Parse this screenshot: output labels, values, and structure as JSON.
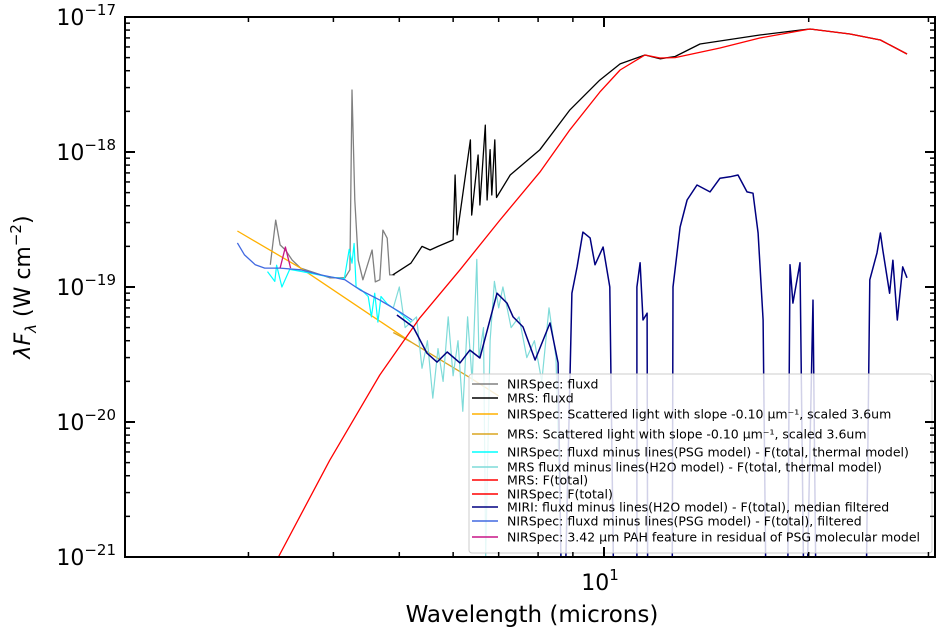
{
  "chart_data": {
    "type": "line",
    "title": "",
    "xlabel": "Wavelength (microns)",
    "ylabel": {
      "main": "λF",
      "sub": "λ",
      "unit": " (W cm",
      "exp": "−2",
      "close": ")"
    },
    "xscale": "log",
    "yscale": "log",
    "xlim": [
      1.97,
      30.7
    ],
    "ylim": [
      1e-21,
      1e-17
    ],
    "grid": false,
    "legend_placement": "lower-right",
    "x_ticks": [
      {
        "value": 10,
        "base": "10",
        "exp": "1"
      }
    ],
    "y_ticks": [
      {
        "value": 1e-17,
        "base": "10",
        "exp": "−17"
      },
      {
        "value": 1e-18,
        "base": "10",
        "exp": "−18"
      },
      {
        "value": 1e-19,
        "base": "10",
        "exp": "−19"
      },
      {
        "value": 1e-20,
        "base": "10",
        "exp": "−20"
      },
      {
        "value": 1e-21,
        "base": "10",
        "exp": "−21"
      }
    ],
    "series": [
      {
        "name": "NIRSpec: fluxd",
        "color": "#808080",
        "points": [
          [
            3.23,
            1.46e-19
          ],
          [
            3.29,
            3.13e-19
          ],
          [
            3.34,
            2.05e-19
          ],
          [
            3.4,
            1.88e-19
          ],
          [
            3.48,
            1.58e-19
          ],
          [
            3.58,
            1.38e-19
          ],
          [
            3.95,
            1.17e-19
          ],
          [
            4.16,
            1.17e-19
          ],
          [
            4.23,
            1.34e-19
          ],
          [
            4.26,
            2.88e-18
          ],
          [
            4.3,
            4.41e-19
          ],
          [
            4.35,
            1.58e-19
          ],
          [
            4.42,
            1.13e-19
          ],
          [
            4.56,
            1.88e-19
          ],
          [
            4.61,
            1.09e-19
          ],
          [
            4.68,
            1.13e-19
          ],
          [
            4.73,
            2.64e-19
          ],
          [
            4.8,
            2.3e-19
          ],
          [
            4.84,
            1.23e-19
          ],
          [
            4.93,
            1.23e-19
          ]
        ]
      },
      {
        "name": "MRS: fluxd",
        "color": "#000000",
        "points": [
          [
            4.89,
            1.23e-19
          ],
          [
            5.2,
            1.5e-19
          ],
          [
            5.4,
            2e-19
          ],
          [
            5.55,
            1.88e-19
          ],
          [
            5.7,
            2e-19
          ],
          [
            6.0,
            2.23e-19
          ],
          [
            6.04,
            6.76e-19
          ],
          [
            6.08,
            2.43e-19
          ],
          [
            6.36,
            1.23e-18
          ],
          [
            6.39,
            3.41e-19
          ],
          [
            6.53,
            9.5e-19
          ],
          [
            6.57,
            4.05e-19
          ],
          [
            6.69,
            1.58e-18
          ],
          [
            6.73,
            4.41e-19
          ],
          [
            6.8,
            1.04e-18
          ],
          [
            6.84,
            4.8e-19
          ],
          [
            6.91,
            1.23e-18
          ],
          [
            6.95,
            4.6e-19
          ],
          [
            7.28,
            6.76e-19
          ],
          [
            8.05,
            1.04e-18
          ],
          [
            8.91,
            2.05e-18
          ],
          [
            9.86,
            3.41e-18
          ],
          [
            10.56,
            4.49e-18
          ],
          [
            11.49,
            5.23e-18
          ],
          [
            12.09,
            4.9e-18
          ],
          [
            12.72,
            5.1e-18
          ],
          [
            13.84,
            6.31e-18
          ],
          [
            16.95,
            7.36e-18
          ],
          [
            19.4,
            8e-18
          ],
          [
            20.09,
            8.15e-18
          ],
          [
            23.0,
            7.48e-18
          ],
          [
            25.5,
            6.75e-18
          ],
          [
            27.9,
            5.32e-18
          ]
        ]
      },
      {
        "name": "NIRSpec: Scattered light with slope -0.10 μm⁻¹, scaled 3.6um",
        "color": "#ffb000",
        "points": [
          [
            2.89,
            2.6e-19
          ],
          [
            3.58,
            1.38e-19
          ],
          [
            4.58,
            6e-20
          ],
          [
            5.2,
            3.92e-20
          ]
        ]
      },
      {
        "name": "MRS: Scattered light with slope -0.10 μm⁻¹, scaled 3.6um",
        "color": "#daa520",
        "points": [
          [
            4.9,
            4.6e-20
          ],
          [
            5.2,
            3.92e-20
          ],
          [
            6.36,
            2.12e-20
          ],
          [
            7.0,
            1.56e-20
          ]
        ]
      },
      {
        "name": "NIRSpec: fluxd minus lines(PSG model) - F(total, thermal model)",
        "color": "#00ffff",
        "points": [
          [
            3.2,
            1.3e-19
          ],
          [
            3.28,
            1.1e-19
          ],
          [
            3.3,
            1.45e-19
          ],
          [
            3.36,
            1e-19
          ],
          [
            3.45,
            1.35e-19
          ],
          [
            3.6,
            1.3e-19
          ],
          [
            3.9,
            1.2e-19
          ],
          [
            4.15,
            1.15e-19
          ],
          [
            4.22,
            1.9e-19
          ],
          [
            4.26,
            1.5e-19
          ],
          [
            4.29,
            2.1e-19
          ],
          [
            4.32,
            1e-19
          ],
          [
            4.4,
            9.5e-20
          ],
          [
            4.5,
            8.5e-20
          ],
          [
            4.55,
            6e-20
          ],
          [
            4.6,
            9e-20
          ],
          [
            4.65,
            5.5e-20
          ],
          [
            4.7,
            8.5e-20
          ],
          [
            4.8,
            7.5e-20
          ],
          [
            5.0,
            6.5e-20
          ],
          [
            5.2,
            5.5e-20
          ]
        ]
      },
      {
        "name": "MRS fluxd minus lines(H2O model) - F(total, thermal model)",
        "color": "#7fdbd9",
        "points": [
          [
            4.9,
            7e-20
          ],
          [
            5.0,
            1e-19
          ],
          [
            5.1,
            5e-20
          ],
          [
            5.3,
            6e-20
          ],
          [
            5.4,
            2.5e-20
          ],
          [
            5.5,
            4e-20
          ],
          [
            5.6,
            1.5e-20
          ],
          [
            5.7,
            3.5e-20
          ],
          [
            5.8,
            2e-20
          ],
          [
            5.9,
            6e-20
          ],
          [
            6.0,
            2.2e-20
          ],
          [
            6.1,
            4e-20
          ],
          [
            6.2,
            1.2e-20
          ],
          [
            6.3,
            6e-20
          ],
          [
            6.4,
            2e-20
          ],
          [
            6.5,
            1.6e-19
          ],
          [
            6.55,
            3e-20
          ],
          [
            6.65,
            5e-20
          ],
          [
            6.7,
            1e-21
          ],
          [
            6.8,
            4e-20
          ],
          [
            6.9,
            1.1e-19
          ],
          [
            7.0,
            7e-20
          ],
          [
            7.1,
            1e-19
          ],
          [
            7.3,
            5e-20
          ],
          [
            7.5,
            6e-20
          ],
          [
            7.7,
            3e-20
          ],
          [
            7.9,
            4e-20
          ],
          [
            8.1,
            2e-20
          ],
          [
            8.3,
            7e-20
          ],
          [
            8.5,
            3e-20
          ],
          [
            8.65,
            1e-21
          ]
        ]
      },
      {
        "name": "MRS: F(total)",
        "color": "#ff0000",
        "points": [
          [
            3.2,
            6e-22
          ],
          [
            3.32,
            1e-21
          ],
          [
            3.95,
            5.2e-21
          ],
          [
            4.68,
            2.23e-20
          ],
          [
            5.36,
            5.9e-20
          ],
          [
            6.14,
            1.34e-19
          ],
          [
            7.03,
            3.13e-19
          ],
          [
            8.05,
            7.1e-19
          ],
          [
            8.91,
            1.46e-18
          ],
          [
            9.86,
            2.78e-18
          ],
          [
            10.56,
            4.05e-18
          ],
          [
            11.49,
            5.23e-18
          ],
          [
            12.09,
            4.97e-18
          ],
          [
            12.72,
            5e-18
          ],
          [
            14.81,
            5.89e-18
          ],
          [
            16.95,
            6.99e-18
          ],
          [
            20.09,
            8.15e-18
          ],
          [
            23.0,
            7.48e-18
          ],
          [
            25.5,
            6.75e-18
          ],
          [
            27.9,
            5.32e-18
          ]
        ]
      },
      {
        "name": "NIRSpec: F(total)",
        "color": "#ff0000",
        "points": []
      },
      {
        "name": "MIRI: fluxd minus lines(H2O model) - F(total), median filtered",
        "color": "#000080",
        "points": [
          [
            4.96,
            6.2e-20
          ],
          [
            5.24,
            5.06e-20
          ],
          [
            5.49,
            3.24e-20
          ],
          [
            5.68,
            2.78e-20
          ],
          [
            5.88,
            3.3e-20
          ],
          [
            6.14,
            2.74e-20
          ],
          [
            6.35,
            3.41e-20
          ],
          [
            6.57,
            2.98e-20
          ],
          [
            6.96,
            9e-20
          ],
          [
            7.2,
            7.6e-20
          ],
          [
            7.35,
            6e-20
          ],
          [
            7.6,
            5.06e-20
          ],
          [
            7.92,
            2.88e-20
          ],
          [
            8.33,
            5.41e-20
          ],
          [
            8.56,
            2.74e-20
          ],
          [
            8.7,
            1e-22
          ],
          [
            8.97,
            9e-20
          ],
          [
            9.13,
            1.41e-19
          ],
          [
            9.31,
            2.55e-19
          ],
          [
            9.54,
            2.31e-19
          ],
          [
            9.7,
            1.46e-19
          ],
          [
            9.97,
            1.98e-19
          ],
          [
            10.2,
            1e-19
          ],
          [
            10.38,
            1e-22
          ],
          [
            11.18,
            1e-22
          ],
          [
            11.18,
            1e-19
          ],
          [
            11.3,
            1.51e-19
          ],
          [
            11.41,
            5.7e-20
          ],
          [
            11.57,
            6.4e-20
          ],
          [
            11.6,
            1e-22
          ],
          [
            12.59,
            1e-22
          ],
          [
            12.63,
            1e-19
          ],
          [
            12.94,
            2.78e-19
          ],
          [
            13.25,
            4.41e-19
          ],
          [
            13.7,
            5.7e-19
          ],
          [
            14.32,
            5.06e-19
          ],
          [
            14.81,
            6.4e-19
          ],
          [
            15.32,
            6.55e-19
          ],
          [
            15.74,
            6.76e-19
          ],
          [
            16.23,
            5.06e-19
          ],
          [
            16.56,
            4.95e-19
          ],
          [
            16.85,
            2.51e-19
          ],
          [
            17.14,
            5.7e-20
          ],
          [
            17.37,
            1e-22
          ],
          [
            18.58,
            1e-22
          ],
          [
            18.77,
            1.46e-19
          ],
          [
            18.96,
            7.6e-20
          ],
          [
            19.42,
            1.51e-19
          ],
          [
            19.75,
            1e-22
          ],
          [
            20.29,
            8e-20
          ],
          [
            20.57,
            1e-22
          ],
          [
            24.2,
            1e-22
          ],
          [
            24.6,
            1.13e-19
          ],
          [
            25.2,
            1.79e-19
          ],
          [
            25.5,
            2.51e-19
          ],
          [
            25.7,
            1.88e-19
          ],
          [
            26.3,
            9e-20
          ],
          [
            26.6,
            1.58e-19
          ],
          [
            27.0,
            5.7e-20
          ],
          [
            27.5,
            1.41e-19
          ],
          [
            27.9,
            1.17e-19
          ]
        ]
      },
      {
        "name": "NIRSpec: fluxd minus lines(PSG model) - F(total), filtered",
        "color": "#4169e1",
        "points": [
          [
            2.89,
            2.12e-19
          ],
          [
            2.96,
            1.73e-19
          ],
          [
            3.07,
            1.46e-19
          ],
          [
            3.17,
            1.38e-19
          ],
          [
            3.34,
            1.38e-19
          ],
          [
            3.58,
            1.34e-19
          ],
          [
            3.83,
            1.23e-19
          ],
          [
            4.16,
            1.13e-19
          ],
          [
            4.38,
            9.5e-20
          ],
          [
            4.68,
            8e-20
          ],
          [
            5.01,
            6.53e-20
          ],
          [
            5.22,
            5.7e-20
          ]
        ]
      },
      {
        "name": "NIRSpec: 3.42 μm PAH feature in residual of PSG molecular model",
        "color": "#c71585",
        "points": [
          [
            3.34,
            1.38e-19
          ],
          [
            3.4,
            1.98e-19
          ],
          [
            3.46,
            1.38e-19
          ]
        ]
      }
    ]
  }
}
